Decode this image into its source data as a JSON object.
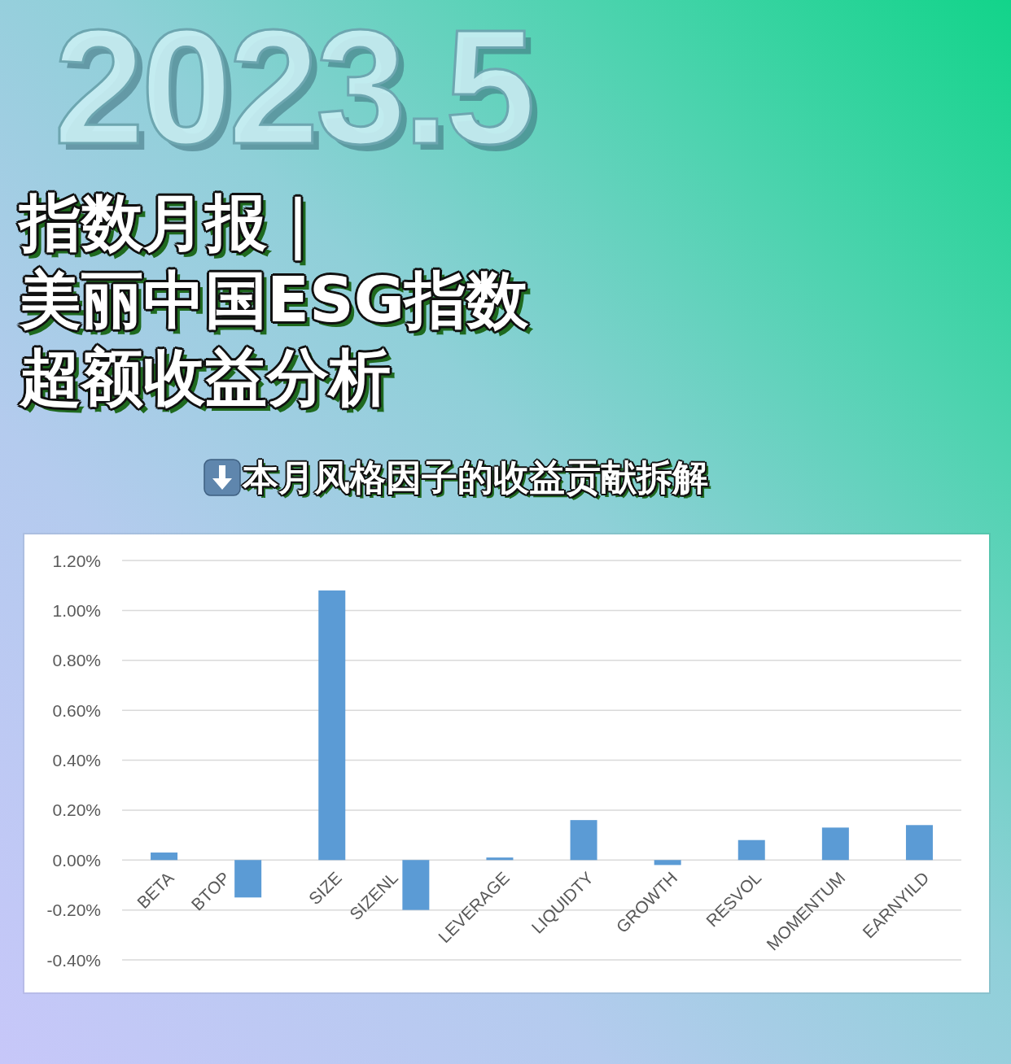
{
  "chart_data": {
    "type": "bar",
    "title": "指数月报｜美丽中国ESG指数超额收益分析",
    "subtitle": "本月风格因子的收益贡献拆解",
    "annotations": [
      "2023.5"
    ],
    "categories": [
      "BETA",
      "BTOP",
      "SIZE",
      "SIZENL",
      "LEVERAGE",
      "LIQUIDTY",
      "GROWTH",
      "RESVOL",
      "MOMENTUM",
      "EARNYILD"
    ],
    "values": [
      0.03,
      -0.15,
      1.08,
      -0.2,
      0.01,
      0.16,
      -0.02,
      0.08,
      0.13,
      0.14
    ],
    "color": "#5b9bd5",
    "ylim": [
      -0.4,
      1.2
    ],
    "yticks": [
      {
        "value": -0.4,
        "label": "-0.40%"
      },
      {
        "value": -0.2,
        "label": "-0.20%"
      },
      {
        "value": 0,
        "label": "0.00%"
      },
      {
        "value": 0.2,
        "label": "0.20%"
      },
      {
        "value": 0.4,
        "label": "0.40%"
      },
      {
        "value": 0.6,
        "label": "0.60%"
      },
      {
        "value": 0.8,
        "label": "0.80%"
      },
      {
        "value": 1.0,
        "label": "1.00%"
      },
      {
        "value": 1.2,
        "label": "1.20%"
      }
    ],
    "grid": "y"
  }
}
